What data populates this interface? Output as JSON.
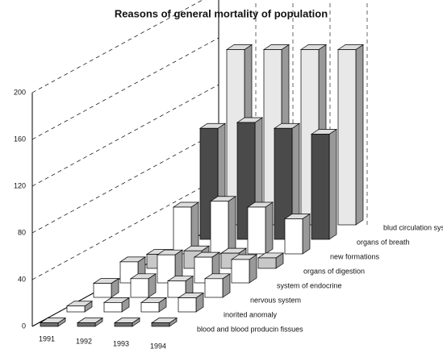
{
  "chart_data": {
    "type": "bar3d",
    "title": "Reasons of general mortality of population",
    "categories": [
      "1991",
      "1992",
      "1993",
      "1994"
    ],
    "series": [
      {
        "name": "blood and blood producin fissues",
        "color": "#6f6f6f",
        "values": [
          3,
          3,
          3,
          3
        ]
      },
      {
        "name": "inorited anomaly",
        "color": "#ffffff",
        "values": [
          5,
          8,
          8,
          12
        ]
      },
      {
        "name": "nervous system",
        "color": "#ffffff",
        "values": [
          12,
          16,
          14,
          16
        ]
      },
      {
        "name": "system of endocrine",
        "color": "#ffffff",
        "values": [
          18,
          24,
          22,
          20
        ]
      },
      {
        "name": "organs of digestion",
        "color": "#c8c8c8",
        "values": [
          12,
          15,
          13,
          9
        ]
      },
      {
        "name": "new formations",
        "color": "#ffffff",
        "values": [
          40,
          45,
          40,
          30
        ]
      },
      {
        "name": "organs of breath",
        "color": "#4a4a4a",
        "values": [
          95,
          100,
          95,
          90
        ]
      },
      {
        "name": "blud circulation system",
        "color": "#e8e8e8",
        "values": [
          150,
          150,
          150,
          150
        ]
      }
    ],
    "ylim": [
      0,
      200
    ],
    "yticks": [
      0,
      40,
      80,
      120,
      160,
      200
    ],
    "grid": true
  }
}
